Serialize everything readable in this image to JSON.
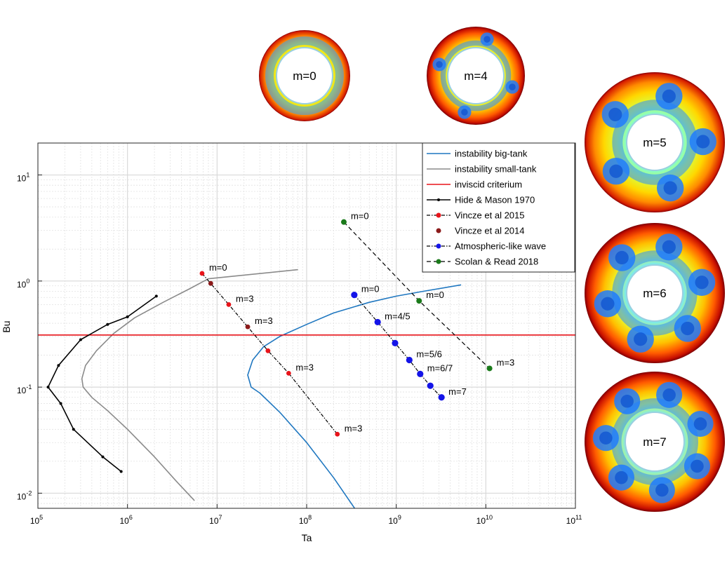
{
  "chart_data": {
    "type": "line",
    "xlabel": "Ta",
    "ylabel": "Bu",
    "xscale": "log",
    "yscale": "log",
    "xlim": [
      100000,
      100000000000
    ],
    "ylim": [
      0.0072,
      20
    ],
    "grid": "major-and-minor",
    "legend_position": "top-right",
    "x_ticks": [
      {
        "value": 100000,
        "base": "10",
        "exp": "5"
      },
      {
        "value": 1000000,
        "base": "10",
        "exp": "6"
      },
      {
        "value": 10000000,
        "base": "10",
        "exp": "7"
      },
      {
        "value": 100000000,
        "base": "10",
        "exp": "8"
      },
      {
        "value": 1000000000,
        "base": "10",
        "exp": "9"
      },
      {
        "value": 10000000000,
        "base": "10",
        "exp": "10"
      },
      {
        "value": 100000000000,
        "base": "10",
        "exp": "11"
      }
    ],
    "y_ticks": [
      {
        "value": 0.01,
        "base": "10",
        "exp": "-2"
      },
      {
        "value": 0.1,
        "base": "10",
        "exp": "-1"
      },
      {
        "value": 1,
        "base": "10",
        "exp": "0"
      },
      {
        "value": 10,
        "base": "10",
        "exp": "1"
      }
    ],
    "series": [
      {
        "name": "instability big-tank",
        "color": "#1f77c0",
        "style": "solid",
        "marker": "none",
        "points": [
          [
            360000000,
            0.0068
          ],
          [
            200000000,
            0.014
          ],
          [
            100000000,
            0.03
          ],
          [
            50000000,
            0.058
          ],
          [
            30000000,
            0.088
          ],
          [
            24000000,
            0.1
          ],
          [
            22000000,
            0.13
          ],
          [
            25000000,
            0.18
          ],
          [
            33000000,
            0.24
          ],
          [
            50000000,
            0.3
          ],
          [
            100000000,
            0.39
          ],
          [
            200000000,
            0.5
          ],
          [
            500000000,
            0.63
          ],
          [
            1000000000,
            0.72
          ],
          [
            2000000000,
            0.8
          ],
          [
            5300000000,
            0.92
          ]
        ]
      },
      {
        "name": "instability small-tank",
        "color": "#8a8a8a",
        "style": "solid",
        "marker": "none",
        "points": [
          [
            5600000,
            0.0085
          ],
          [
            3500000,
            0.013
          ],
          [
            2000000,
            0.022
          ],
          [
            1000000,
            0.04
          ],
          [
            600000,
            0.06
          ],
          [
            400000,
            0.08
          ],
          [
            320000,
            0.1
          ],
          [
            310000,
            0.12
          ],
          [
            340000,
            0.16
          ],
          [
            450000,
            0.22
          ],
          [
            700000,
            0.32
          ],
          [
            1200000,
            0.45
          ],
          [
            2500000,
            0.63
          ],
          [
            5000000,
            0.85
          ],
          [
            8000000,
            1.05
          ],
          [
            80000000,
            1.28
          ]
        ]
      },
      {
        "name": "inviscid criterium",
        "color": "#e8141a",
        "style": "solid",
        "marker": "none",
        "points": [
          [
            100000,
            0.31
          ],
          [
            100000000000,
            0.31
          ]
        ]
      },
      {
        "name": "Hide & Mason 1970",
        "color": "#000000",
        "style": "solid",
        "marker": "dot",
        "points": [
          [
            850000,
            0.016
          ],
          [
            530000,
            0.022
          ],
          [
            250000,
            0.04
          ],
          [
            180000,
            0.07
          ],
          [
            130000,
            0.1
          ],
          [
            170000,
            0.16
          ],
          [
            300000,
            0.28
          ],
          [
            600000,
            0.39
          ],
          [
            1000000,
            0.46
          ],
          [
            2100000,
            0.72
          ]
        ]
      },
      {
        "name": "Vincze et al 2015",
        "color": "#e8141a",
        "style": "dashdot",
        "marker": "dot",
        "points": [
          [
            6800000,
            1.18
          ],
          [
            13500000,
            0.6
          ],
          [
            37000000,
            0.22
          ],
          [
            63000000,
            0.135
          ],
          [
            220000000,
            0.036
          ]
        ]
      },
      {
        "name": "Vincze et al 2014",
        "color": "#8b1a1a",
        "style": "none",
        "marker": "dot",
        "points": [
          [
            8500000,
            0.95
          ],
          [
            22000000,
            0.37
          ]
        ]
      },
      {
        "name": "Atmospheric-like wave",
        "color": "#1414e8",
        "style": "dashdot-black",
        "marker": "dot",
        "points": [
          [
            340000000,
            0.74
          ],
          [
            620000000,
            0.41
          ],
          [
            970000000,
            0.26
          ],
          [
            1400000000,
            0.18
          ],
          [
            1850000000,
            0.133
          ],
          [
            2400000000,
            0.103
          ],
          [
            3200000000,
            0.08
          ]
        ]
      },
      {
        "name": "Scolan & Read 2018",
        "color": "#1a7a1a",
        "style": "dashed-black",
        "marker": "dot",
        "points": [
          [
            260000000,
            3.6
          ],
          [
            1800000000,
            0.65
          ],
          [
            11000000000,
            0.15
          ]
        ]
      }
    ],
    "annotations": [
      {
        "text": "m=0",
        "x": 6800000,
        "y": 1.18
      },
      {
        "text": "m=3",
        "x": 13500000,
        "y": 0.6
      },
      {
        "text": "m=3",
        "x": 22000000,
        "y": 0.37
      },
      {
        "text": "m=3",
        "x": 63000000,
        "y": 0.135
      },
      {
        "text": "m=3",
        "x": 220000000,
        "y": 0.036
      },
      {
        "text": "m=0",
        "x": 260000000,
        "y": 3.6
      },
      {
        "text": "m=0",
        "x": 340000000,
        "y": 0.74
      },
      {
        "text": "m=4/5",
        "x": 620000000,
        "y": 0.41
      },
      {
        "text": "m=5/6",
        "x": 1400000000,
        "y": 0.18
      },
      {
        "text": "m=6/7",
        "x": 1850000000,
        "y": 0.133
      },
      {
        "text": "m=7",
        "x": 3200000000,
        "y": 0.08
      },
      {
        "text": "m=0",
        "x": 1800000000,
        "y": 0.65
      },
      {
        "text": "m=3",
        "x": 11000000000,
        "y": 0.15
      }
    ]
  },
  "disks": [
    {
      "label": "m=0",
      "lobes": 0
    },
    {
      "label": "m=4",
      "lobes": 4
    },
    {
      "label": "m=5",
      "lobes": 5
    },
    {
      "label": "m=6",
      "lobes": 6
    },
    {
      "label": "m=7",
      "lobes": 7
    }
  ]
}
